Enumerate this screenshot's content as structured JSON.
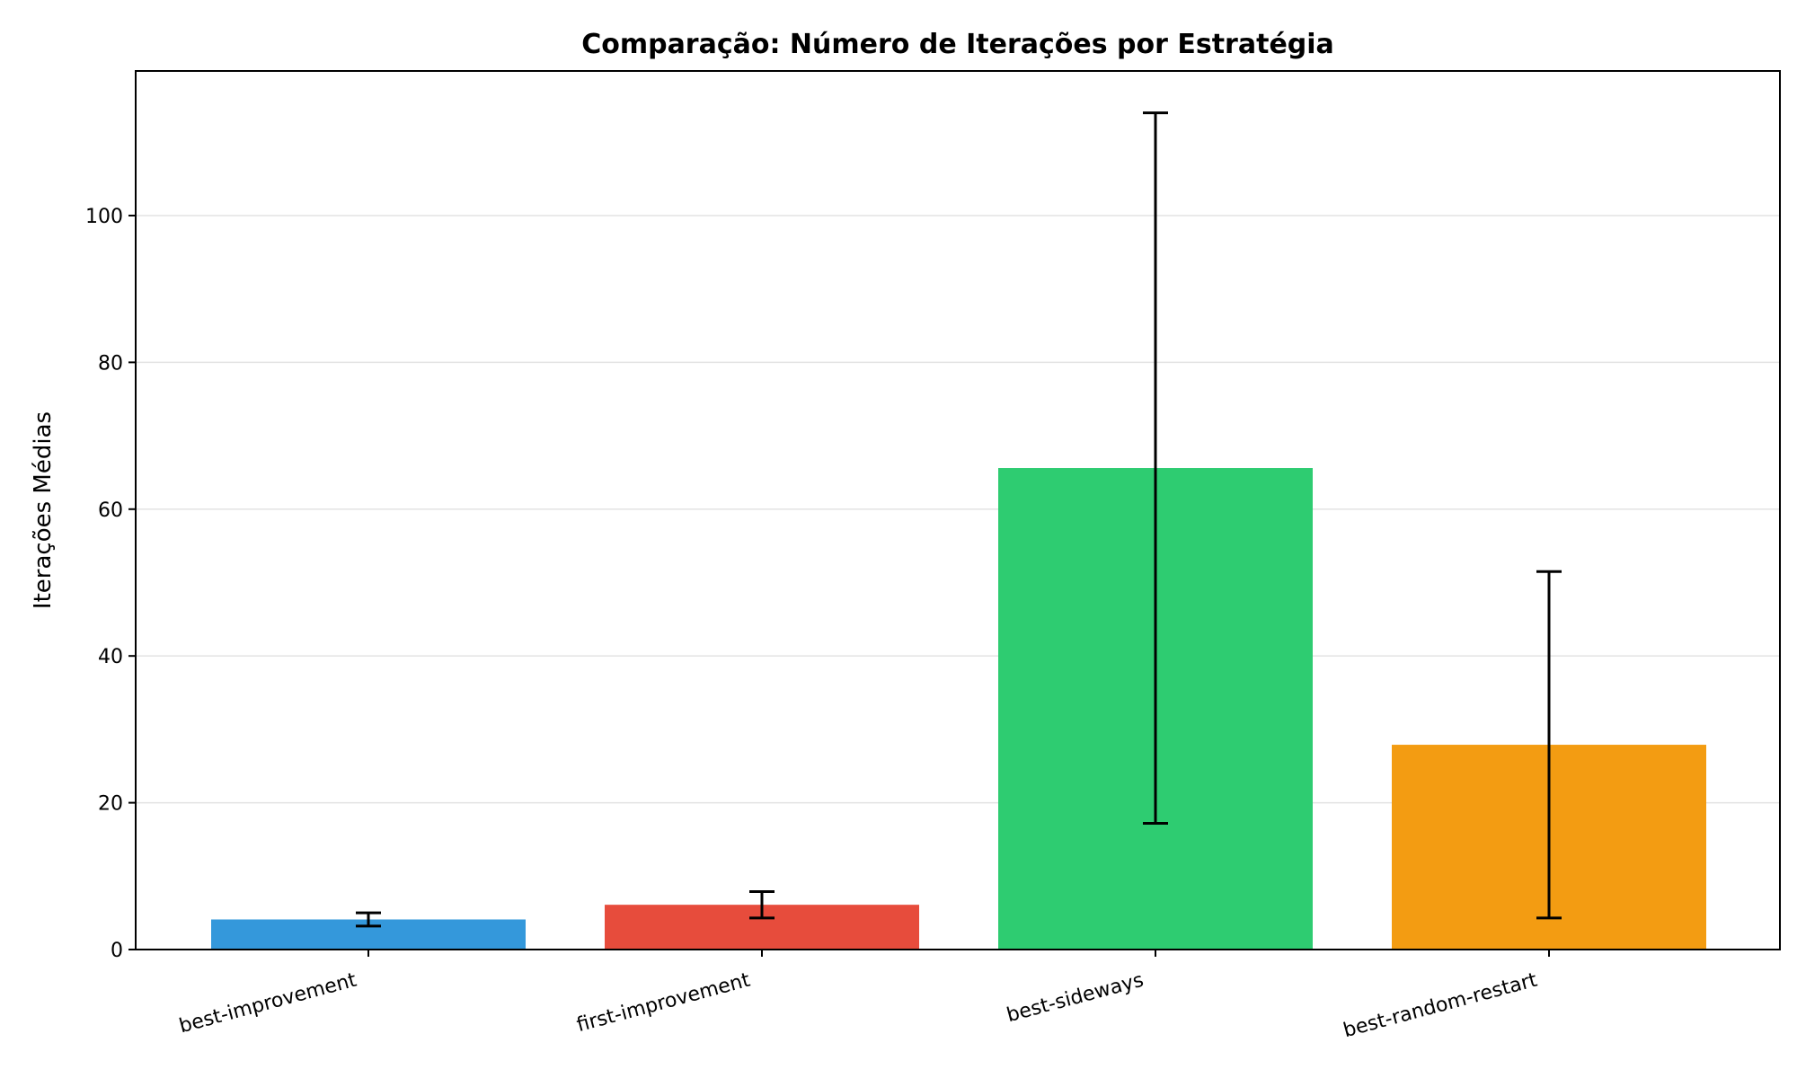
{
  "chart_data": {
    "type": "bar",
    "title": "Comparação: Número de Iterações por Estratégia",
    "xlabel": "",
    "ylabel": "Iterações Médias",
    "categories": [
      "best-improvement",
      "first-improvement",
      "best-sideways",
      "best-random-restart"
    ],
    "values": [
      4.1,
      6.1,
      65.6,
      27.9
    ],
    "errors": [
      0.9,
      1.8,
      48.4,
      23.6
    ],
    "colors": [
      "#3498db",
      "#e74c3c",
      "#2ecc71",
      "#f39c12"
    ],
    "ylim": [
      0,
      119.7
    ],
    "yticks": [
      0,
      20,
      40,
      60,
      80,
      100
    ],
    "grid": "y-axis",
    "legend": "none"
  }
}
